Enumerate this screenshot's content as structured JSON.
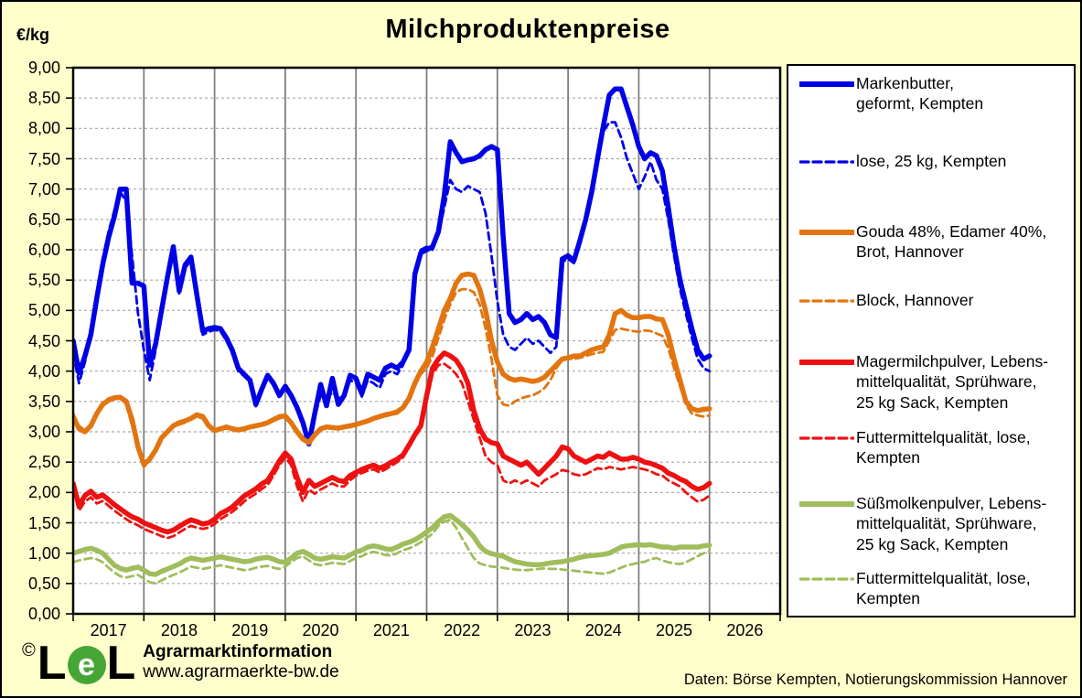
{
  "page": {
    "background_color": "#FFFFCC",
    "plot_background": "#FFFFFF",
    "border_color": "#000000",
    "grid_vertical_color": "#808080",
    "grid_horizontal_color": "#A8A8A8"
  },
  "chart_data": {
    "type": "line",
    "title": "Milchproduktenpreise",
    "ylabel": "€/kg",
    "ylim": [
      0,
      9
    ],
    "y_tick_step": 0.5,
    "y_tick_decimal": "comma",
    "x_tick_labels": [
      "2017",
      "2018",
      "2019",
      "2020",
      "2021",
      "2022",
      "2023",
      "2024",
      "2025",
      "2026"
    ],
    "x_range_years": [
      2017,
      2027
    ],
    "x_resolution": "monthly",
    "x_start": "2017-01",
    "x_end": "2026-01",
    "grid": {
      "horizontal": "dashed",
      "vertical": "solid"
    },
    "legend_position": "right",
    "series": [
      {
        "id": "markenbutter-geformt",
        "label": "Markenbutter,\ngeformt, Kempten",
        "color": "#0000E6",
        "dash": false,
        "values": [
          4.5,
          3.97,
          4.25,
          4.6,
          5.2,
          5.75,
          6.2,
          6.55,
          7.0,
          7.0,
          5.45,
          5.45,
          5.4,
          4.1,
          4.45,
          5.0,
          5.55,
          6.05,
          5.32,
          5.75,
          5.88,
          5.25,
          4.66,
          4.7,
          4.72,
          4.7,
          4.55,
          4.35,
          4.05,
          3.95,
          3.85,
          3.45,
          3.7,
          3.93,
          3.8,
          3.6,
          3.75,
          3.6,
          3.4,
          3.15,
          2.8,
          3.3,
          3.78,
          3.43,
          3.88,
          3.45,
          3.6,
          3.93,
          3.88,
          3.63,
          3.95,
          3.9,
          3.85,
          4.05,
          4.1,
          4.05,
          4.15,
          4.35,
          5.6,
          5.95,
          6.0,
          6.05,
          6.3,
          6.9,
          7.78,
          7.6,
          7.45,
          7.48,
          7.5,
          7.55,
          7.65,
          7.7,
          7.65,
          6.2,
          4.95,
          4.8,
          4.85,
          4.95,
          4.85,
          4.9,
          4.8,
          4.6,
          4.55,
          5.85,
          5.9,
          5.82,
          6.15,
          6.5,
          6.95,
          7.5,
          8.05,
          8.55,
          8.65,
          8.65,
          8.35,
          8.05,
          7.7,
          7.5,
          7.6,
          7.55,
          7.3,
          6.7,
          6.05,
          5.5,
          5.1,
          4.7,
          4.35,
          4.2,
          4.25
        ]
      },
      {
        "id": "butter-lose",
        "label": "lose, 25 kg, Kempten",
        "color": "#0000E6",
        "dash": true,
        "values": [
          4.3,
          3.8,
          4.15,
          4.65,
          5.3,
          5.85,
          6.3,
          6.65,
          6.95,
          6.8,
          5.9,
          4.95,
          4.35,
          3.85,
          4.35,
          4.95,
          5.5,
          6.0,
          5.28,
          5.7,
          5.82,
          5.2,
          4.6,
          4.65,
          4.68,
          4.66,
          4.5,
          4.3,
          4.0,
          3.92,
          3.82,
          3.42,
          3.65,
          3.9,
          3.76,
          3.56,
          3.72,
          3.56,
          3.36,
          3.1,
          2.85,
          3.25,
          3.6,
          3.55,
          3.65,
          3.55,
          3.58,
          3.85,
          3.8,
          3.58,
          3.85,
          3.8,
          3.72,
          3.95,
          4.0,
          3.95,
          4.1,
          4.4,
          5.65,
          6.0,
          6.05,
          6.0,
          6.25,
          6.7,
          7.15,
          7.0,
          6.95,
          7.05,
          7.0,
          6.95,
          6.6,
          5.9,
          5.15,
          4.6,
          4.4,
          4.35,
          4.45,
          4.55,
          4.45,
          4.5,
          4.4,
          4.3,
          4.4,
          5.8,
          5.85,
          5.78,
          6.1,
          6.45,
          6.9,
          7.45,
          7.95,
          8.1,
          8.1,
          7.85,
          7.5,
          7.25,
          7.0,
          7.2,
          7.45,
          7.15,
          7.0,
          6.5,
          5.9,
          5.35,
          4.95,
          4.55,
          4.2,
          4.05,
          4.0
        ]
      },
      {
        "id": "gouda-edamer-brot",
        "label": "Gouda 48%, Edamer 40%,\nBrot, Hannover",
        "color": "#E2750F",
        "dash": false,
        "values": [
          3.25,
          3.05,
          3.0,
          3.1,
          3.3,
          3.45,
          3.52,
          3.56,
          3.57,
          3.5,
          3.2,
          2.75,
          2.46,
          2.55,
          2.7,
          2.9,
          3.0,
          3.1,
          3.15,
          3.18,
          3.22,
          3.28,
          3.25,
          3.1,
          3.02,
          3.05,
          3.08,
          3.05,
          3.03,
          3.05,
          3.08,
          3.1,
          3.12,
          3.15,
          3.2,
          3.25,
          3.26,
          3.15,
          3.0,
          2.88,
          2.82,
          2.95,
          3.05,
          3.08,
          3.07,
          3.06,
          3.08,
          3.1,
          3.12,
          3.15,
          3.18,
          3.22,
          3.25,
          3.28,
          3.3,
          3.33,
          3.4,
          3.55,
          3.8,
          4.0,
          4.15,
          4.4,
          4.7,
          5.0,
          5.2,
          5.45,
          5.58,
          5.6,
          5.58,
          5.35,
          5.0,
          4.5,
          4.15,
          3.95,
          3.88,
          3.85,
          3.87,
          3.85,
          3.83,
          3.85,
          3.9,
          4.0,
          4.1,
          4.2,
          4.22,
          4.25,
          4.25,
          4.3,
          4.35,
          4.38,
          4.4,
          4.6,
          4.95,
          5.0,
          4.92,
          4.88,
          4.88,
          4.9,
          4.9,
          4.86,
          4.85,
          4.6,
          4.2,
          3.85,
          3.5,
          3.38,
          3.35,
          3.37,
          3.38
        ]
      },
      {
        "id": "block-hannover",
        "label": "Block, Hannover",
        "color": "#E2750F",
        "dash": true,
        "values": [
          3.3,
          3.1,
          3.02,
          3.12,
          3.32,
          3.48,
          3.55,
          3.58,
          3.55,
          3.45,
          3.1,
          2.7,
          2.42,
          2.52,
          2.68,
          2.88,
          2.98,
          3.08,
          3.12,
          3.15,
          3.2,
          3.25,
          3.22,
          3.08,
          3.0,
          3.03,
          3.06,
          3.03,
          3.01,
          3.03,
          3.06,
          3.08,
          3.1,
          3.13,
          3.18,
          3.22,
          3.24,
          3.12,
          2.98,
          2.86,
          2.8,
          2.92,
          3.02,
          3.06,
          3.05,
          3.04,
          3.06,
          3.08,
          3.1,
          3.13,
          3.16,
          3.2,
          3.23,
          3.26,
          3.28,
          3.3,
          3.38,
          3.52,
          3.75,
          3.95,
          4.05,
          4.25,
          4.55,
          4.85,
          5.1,
          5.3,
          5.35,
          5.35,
          5.3,
          5.1,
          4.7,
          4.2,
          3.6,
          3.45,
          3.43,
          3.5,
          3.55,
          3.58,
          3.6,
          3.65,
          3.72,
          3.85,
          4.05,
          4.18,
          4.2,
          4.2,
          4.22,
          4.25,
          4.28,
          4.3,
          4.32,
          4.5,
          4.68,
          4.7,
          4.68,
          4.66,
          4.65,
          4.67,
          4.66,
          4.62,
          4.58,
          4.38,
          4.05,
          3.75,
          3.45,
          3.3,
          3.27,
          3.25,
          3.27
        ]
      },
      {
        "id": "magermilchpulver-lmq",
        "label": "Magermilchpulver, Lebens-\nmittelqualität, Sprühware,\n25 kg Sack, Kempten",
        "color": "#EE1111",
        "dash": false,
        "values": [
          2.15,
          1.78,
          1.95,
          2.02,
          1.92,
          1.96,
          1.88,
          1.8,
          1.73,
          1.66,
          1.6,
          1.56,
          1.5,
          1.46,
          1.42,
          1.38,
          1.35,
          1.38,
          1.44,
          1.5,
          1.55,
          1.52,
          1.48,
          1.5,
          1.56,
          1.65,
          1.7,
          1.76,
          1.85,
          1.94,
          2.0,
          2.06,
          2.14,
          2.2,
          2.35,
          2.52,
          2.65,
          2.55,
          2.25,
          2.0,
          2.2,
          2.1,
          2.15,
          2.2,
          2.25,
          2.2,
          2.18,
          2.28,
          2.33,
          2.38,
          2.42,
          2.45,
          2.4,
          2.44,
          2.5,
          2.55,
          2.62,
          2.78,
          2.95,
          3.1,
          3.6,
          4.05,
          4.2,
          4.3,
          4.25,
          4.18,
          4.03,
          3.8,
          3.35,
          3.05,
          2.88,
          2.82,
          2.8,
          2.6,
          2.55,
          2.5,
          2.45,
          2.5,
          2.4,
          2.3,
          2.4,
          2.5,
          2.6,
          2.75,
          2.72,
          2.6,
          2.55,
          2.5,
          2.55,
          2.6,
          2.58,
          2.65,
          2.6,
          2.55,
          2.55,
          2.58,
          2.55,
          2.5,
          2.48,
          2.44,
          2.4,
          2.32,
          2.28,
          2.22,
          2.18,
          2.1,
          2.05,
          2.08,
          2.15
        ]
      },
      {
        "id": "magermilchpulver-fmq",
        "label": "Futtermittelqualität, lose,\nKempten",
        "color": "#EE1111",
        "dash": true,
        "values": [
          2.05,
          1.7,
          1.85,
          1.92,
          1.82,
          1.86,
          1.78,
          1.7,
          1.63,
          1.56,
          1.5,
          1.46,
          1.4,
          1.36,
          1.32,
          1.28,
          1.25,
          1.28,
          1.34,
          1.4,
          1.45,
          1.42,
          1.4,
          1.42,
          1.48,
          1.56,
          1.62,
          1.68,
          1.76,
          1.85,
          1.92,
          1.98,
          2.06,
          2.12,
          2.28,
          2.45,
          2.58,
          2.45,
          2.1,
          1.85,
          2.05,
          1.98,
          2.05,
          2.1,
          2.15,
          2.1,
          2.1,
          2.2,
          2.28,
          2.32,
          2.36,
          2.38,
          2.33,
          2.38,
          2.44,
          2.5,
          2.58,
          2.74,
          2.92,
          3.05,
          3.5,
          3.95,
          4.1,
          4.12,
          4.05,
          3.95,
          3.8,
          3.5,
          3.2,
          2.9,
          2.6,
          2.5,
          2.45,
          2.2,
          2.15,
          2.2,
          2.15,
          2.2,
          2.15,
          2.1,
          2.2,
          2.25,
          2.3,
          2.37,
          2.35,
          2.3,
          2.28,
          2.3,
          2.35,
          2.4,
          2.38,
          2.42,
          2.4,
          2.38,
          2.4,
          2.42,
          2.4,
          2.38,
          2.35,
          2.3,
          2.28,
          2.2,
          2.15,
          2.1,
          2.0,
          1.92,
          1.85,
          1.88,
          1.95
        ]
      },
      {
        "id": "suessmolkenpulver-lmq",
        "label": "Süßmolkenpulver, Lebens-\nmittelqualität, Sprühware,\n25 kg Sack, Kempten",
        "color": "#A0BD5C",
        "dash": false,
        "values": [
          1.0,
          1.03,
          1.06,
          1.08,
          1.05,
          1.0,
          0.9,
          0.8,
          0.75,
          0.72,
          0.75,
          0.77,
          0.72,
          0.66,
          0.65,
          0.7,
          0.74,
          0.78,
          0.82,
          0.88,
          0.92,
          0.9,
          0.88,
          0.9,
          0.92,
          0.94,
          0.92,
          0.9,
          0.88,
          0.86,
          0.87,
          0.9,
          0.92,
          0.93,
          0.9,
          0.86,
          0.85,
          0.92,
          1.0,
          1.03,
          0.98,
          0.92,
          0.9,
          0.92,
          0.94,
          0.93,
          0.92,
          0.97,
          1.02,
          1.05,
          1.1,
          1.12,
          1.1,
          1.07,
          1.06,
          1.1,
          1.15,
          1.18,
          1.22,
          1.28,
          1.35,
          1.42,
          1.52,
          1.6,
          1.62,
          1.55,
          1.47,
          1.38,
          1.27,
          1.12,
          1.03,
          0.99,
          0.97,
          0.95,
          0.9,
          0.86,
          0.84,
          0.82,
          0.81,
          0.81,
          0.82,
          0.84,
          0.85,
          0.86,
          0.88,
          0.9,
          0.93,
          0.95,
          0.96,
          0.97,
          0.98,
          1.0,
          1.05,
          1.1,
          1.12,
          1.13,
          1.14,
          1.13,
          1.14,
          1.12,
          1.1,
          1.1,
          1.08,
          1.1,
          1.1,
          1.1,
          1.1,
          1.12,
          1.13
        ]
      },
      {
        "id": "suessmolkenpulver-fmq",
        "label": "Futtermittelqualität, lose,\nKempten",
        "color": "#A0BD5C",
        "dash": true,
        "values": [
          0.85,
          0.88,
          0.9,
          0.92,
          0.9,
          0.85,
          0.76,
          0.68,
          0.62,
          0.6,
          0.62,
          0.64,
          0.58,
          0.52,
          0.5,
          0.55,
          0.6,
          0.64,
          0.68,
          0.73,
          0.78,
          0.76,
          0.74,
          0.76,
          0.78,
          0.8,
          0.78,
          0.76,
          0.74,
          0.72,
          0.73,
          0.76,
          0.78,
          0.79,
          0.76,
          0.74,
          0.78,
          0.85,
          0.92,
          0.95,
          0.88,
          0.82,
          0.8,
          0.82,
          0.84,
          0.83,
          0.82,
          0.87,
          0.92,
          0.95,
          1.0,
          1.02,
          1.0,
          0.97,
          0.96,
          1.0,
          1.05,
          1.08,
          1.12,
          1.18,
          1.25,
          1.32,
          1.45,
          1.52,
          1.55,
          1.42,
          1.25,
          1.08,
          0.92,
          0.83,
          0.8,
          0.78,
          0.77,
          0.76,
          0.74,
          0.73,
          0.72,
          0.72,
          0.73,
          0.74,
          0.75,
          0.74,
          0.74,
          0.73,
          0.72,
          0.71,
          0.7,
          0.69,
          0.68,
          0.67,
          0.66,
          0.68,
          0.72,
          0.76,
          0.8,
          0.82,
          0.84,
          0.86,
          0.9,
          0.92,
          0.88,
          0.85,
          0.83,
          0.82,
          0.85,
          0.9,
          0.95,
          1.0,
          1.02
        ]
      }
    ]
  },
  "footer": {
    "copyright": "©",
    "logo": {
      "l1": "L",
      "e": "e",
      "l2": "L",
      "circle_color": "#46A635"
    },
    "brand": "Agrarmarktinformation",
    "url": "www.agrarmaerkte-bw.de",
    "source_note": "Daten: Börse Kempten, Notierungskommission  Hannover"
  }
}
